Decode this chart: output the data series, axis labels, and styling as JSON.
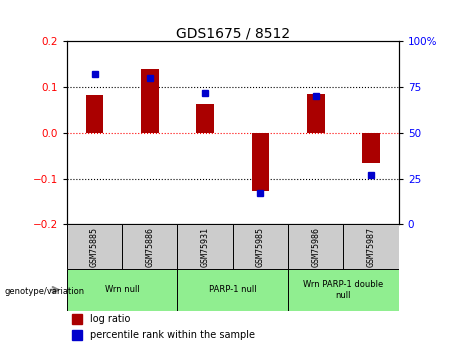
{
  "title": "GDS1675 / 8512",
  "samples": [
    "GSM75885",
    "GSM75886",
    "GSM75931",
    "GSM75985",
    "GSM75986",
    "GSM75987"
  ],
  "log_ratios": [
    0.082,
    0.14,
    0.062,
    -0.128,
    0.085,
    -0.065
  ],
  "percentile_ranks": [
    82,
    80,
    72,
    17,
    70,
    27
  ],
  "groups": [
    {
      "label": "Wrn null",
      "start": 0,
      "end": 2,
      "color": "#90EE90"
    },
    {
      "label": "PARP-1 null",
      "start": 2,
      "end": 4,
      "color": "#90EE90"
    },
    {
      "label": "Wrn PARP-1 double\nnull",
      "start": 4,
      "end": 6,
      "color": "#90EE90"
    }
  ],
  "bar_color": "#aa0000",
  "percentile_color": "#0000cc",
  "bar_width": 0.32,
  "ylim_left": [
    -0.2,
    0.2
  ],
  "ylim_right": [
    0,
    100
  ],
  "yticks_left": [
    -0.2,
    -0.1,
    0,
    0.1,
    0.2
  ],
  "yticks_right": [
    0,
    25,
    50,
    75,
    100
  ],
  "background_color": "#ffffff",
  "sample_box_color": "#cccccc"
}
